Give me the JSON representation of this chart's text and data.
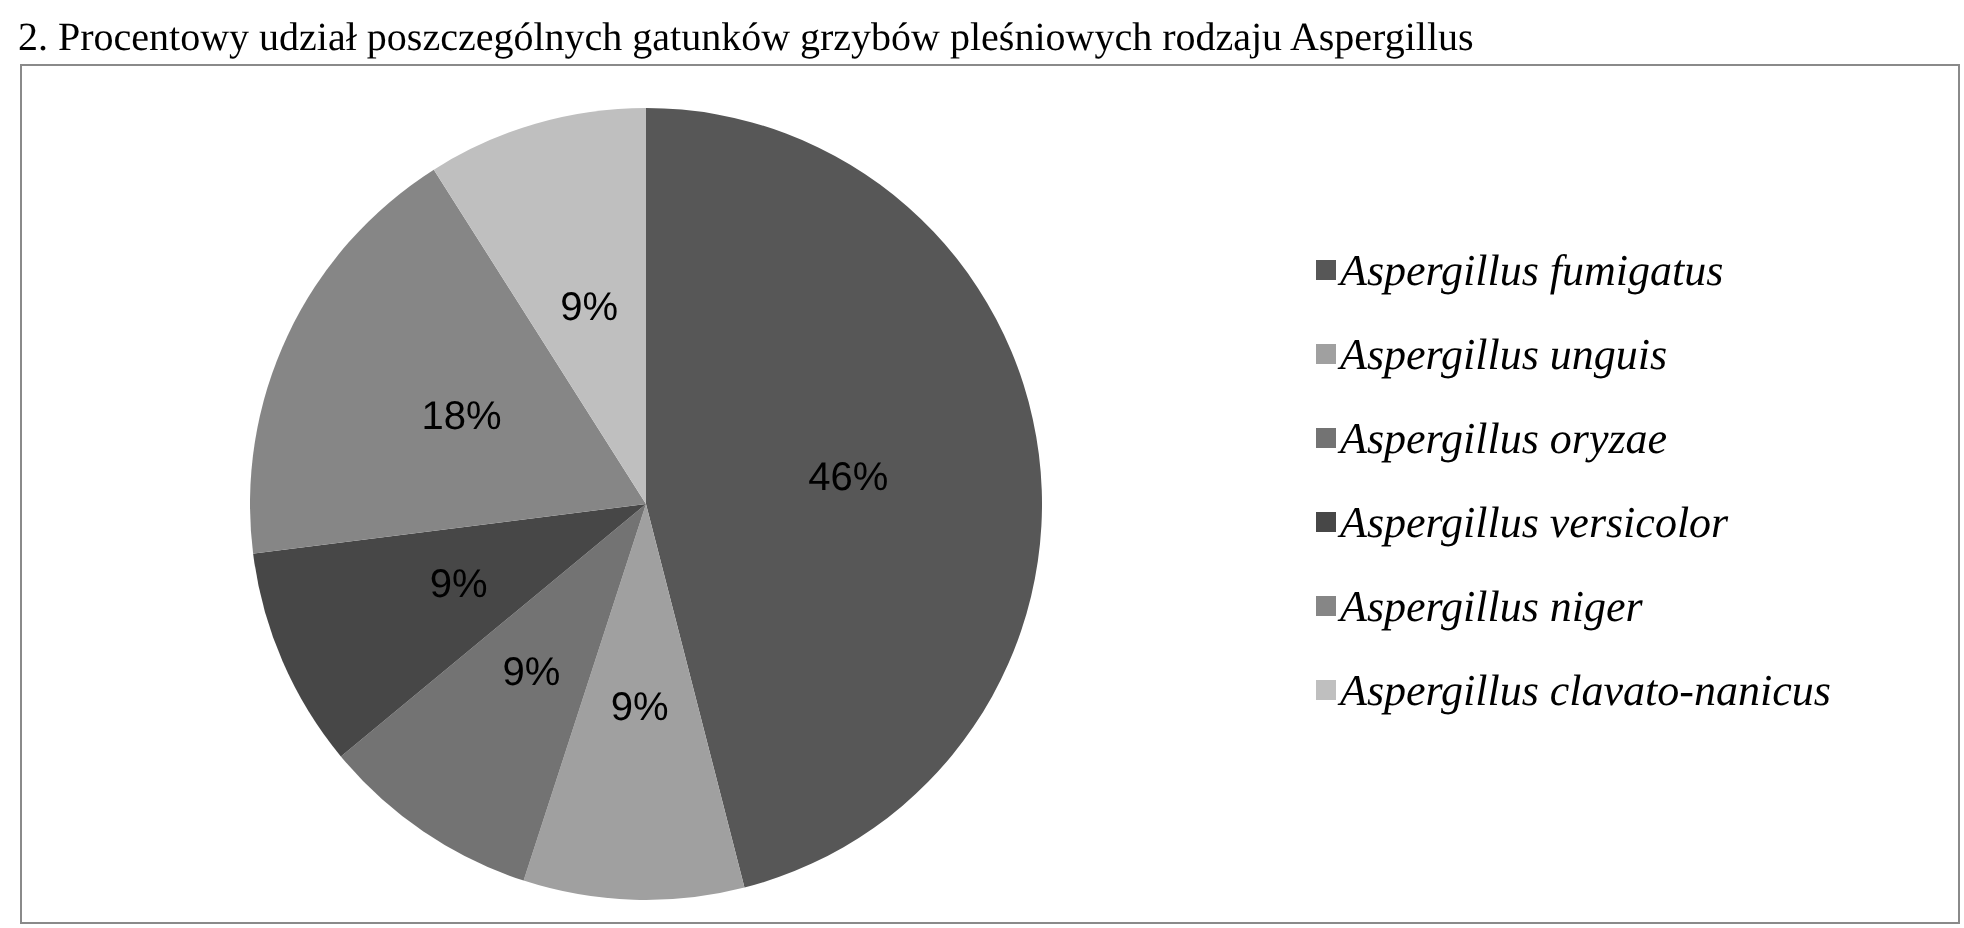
{
  "chart_data": {
    "type": "pie",
    "title": "2. Procentowy udział poszczególnych gatunków grzybów pleśniowych rodzaju Aspergillus",
    "categories": [
      "Aspergillus fumigatus",
      "Aspergillus unguis",
      "Aspergillus oryzae",
      "Aspergillus versicolor",
      "Aspergillus niger",
      "Aspergillus clavato-nanicus"
    ],
    "values": [
      46,
      9,
      9,
      9,
      18,
      9
    ],
    "colors": [
      "#575757",
      "#a0a0a0",
      "#737373",
      "#474747",
      "#868686",
      "#bfbfbf"
    ],
    "value_labels": [
      "46%",
      "9%",
      "9%",
      "9%",
      "18%",
      "9%"
    ],
    "legend": "right"
  }
}
